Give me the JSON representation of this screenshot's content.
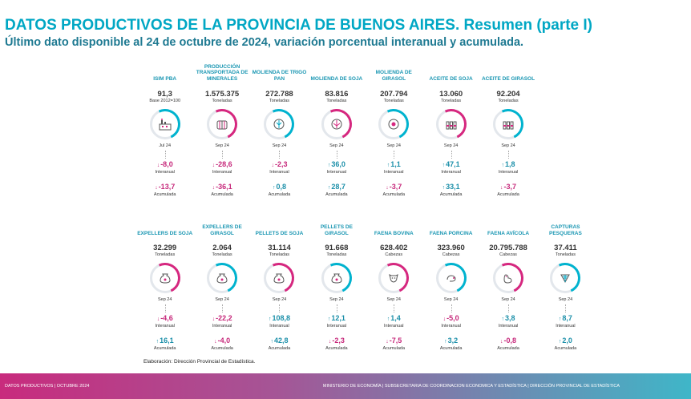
{
  "title": "DATOS PRODUCTIVOS DE LA PROVINCIA DE BUENOS AIRES. Resumen (parte I)",
  "subtitle": "Último dato disponible al 24 de octubre de 2024, variación porcentual interanual y acumulada.",
  "row1": [
    {
      "label": "ISIM PBA",
      "value": "91,3",
      "unit": "Base 2012=100",
      "icon": "factory-icon",
      "period": "Jul 24",
      "inter": "-8,0",
      "inter_dir": "down",
      "acum": "-13,7",
      "acum_dir": "down"
    },
    {
      "label": "PRODUCCIÓN TRANSPORTADA DE MINERALES",
      "value": "1.575.375",
      "unit": "Toneladas",
      "icon": "silo-icon",
      "period": "Sep 24",
      "inter": "-28,6",
      "inter_dir": "down",
      "acum": "-36,1",
      "acum_dir": "down"
    },
    {
      "label": "MOLIENDA DE TRIGO PAN",
      "value": "272.788",
      "unit": "Toneladas",
      "icon": "wheat-icon",
      "period": "Sep 24",
      "inter": "-2,3",
      "inter_dir": "down",
      "acum": "0,8",
      "acum_dir": "up"
    },
    {
      "label": "MOLIENDA DE SOJA",
      "value": "83.816",
      "unit": "Toneladas",
      "icon": "soy-icon",
      "period": "Sep 24",
      "inter": "36,0",
      "inter_dir": "up",
      "acum": "28,7",
      "acum_dir": "up"
    },
    {
      "label": "MOLIENDA DE GIRASOL",
      "value": "207.794",
      "unit": "Toneladas",
      "icon": "sunflower-icon",
      "period": "Sep 24",
      "inter": "1,1",
      "inter_dir": "up",
      "acum": "-3,7",
      "acum_dir": "down"
    },
    {
      "label": "ACEITE DE SOJA",
      "value": "13.060",
      "unit": "Toneladas",
      "icon": "oil-bottles-icon",
      "period": "Sep 24",
      "inter": "47,1",
      "inter_dir": "up",
      "acum": "33,1",
      "acum_dir": "up"
    },
    {
      "label": "ACEITE DE GIRASOL",
      "value": "92.204",
      "unit": "Toneladas",
      "icon": "oil-bottles-icon",
      "period": "Sep 24",
      "inter": "1,8",
      "inter_dir": "up",
      "acum": "-3,7",
      "acum_dir": "down"
    }
  ],
  "row2": [
    {
      "label": "EXPELLERS DE SOJA",
      "value": "32.299",
      "unit": "Toneladas",
      "icon": "sack-icon",
      "period": "Sep 24",
      "inter": "-4,6",
      "inter_dir": "down",
      "acum": "16,1",
      "acum_dir": "up"
    },
    {
      "label": "EXPELLERS DE GIRASOL",
      "value": "2.064",
      "unit": "Toneladas",
      "icon": "sack-icon",
      "period": "Sep 24",
      "inter": "-22,2",
      "inter_dir": "down",
      "acum": "-4,0",
      "acum_dir": "down"
    },
    {
      "label": "PELLETS DE SOJA",
      "value": "31.114",
      "unit": "Toneladas",
      "icon": "sack-icon",
      "period": "Sep 24",
      "inter": "108,8",
      "inter_dir": "up",
      "acum": "42,8",
      "acum_dir": "up"
    },
    {
      "label": "PELLETS DE GIRASOL",
      "value": "91.668",
      "unit": "Toneladas",
      "icon": "sack-icon",
      "period": "Sep 24",
      "inter": "12,1",
      "inter_dir": "up",
      "acum": "-2,3",
      "acum_dir": "down"
    },
    {
      "label": "FAENA BOVINA",
      "value": "628.402",
      "unit": "Cabezas",
      "icon": "cow-icon",
      "period": "Sep 24",
      "inter": "1,4",
      "inter_dir": "up",
      "acum": "-7,5",
      "acum_dir": "down"
    },
    {
      "label": "FAENA PORCINA",
      "value": "323.960",
      "unit": "Cabezas",
      "icon": "pig-icon",
      "period": "Sep 24",
      "inter": "-5,0",
      "inter_dir": "down",
      "acum": "3,2",
      "acum_dir": "up"
    },
    {
      "label": "FAENA AVÍCOLA",
      "value": "20.795.788",
      "unit": "Cabezas",
      "icon": "chicken-icon",
      "period": "Sep 24",
      "inter": "3,8",
      "inter_dir": "up",
      "acum": "-0,8",
      "acum_dir": "down"
    },
    {
      "label": "CAPTURAS PESQUERAS",
      "value": "37.411",
      "unit": "Toneladas",
      "icon": "fishing-net-icon",
      "period": "Sep 24",
      "inter": "8,7",
      "inter_dir": "up",
      "acum": "2,0",
      "acum_dir": "up"
    }
  ],
  "labels": {
    "interanual": "Interanual",
    "acumulada": "Acumulada"
  },
  "footnote": "Elaboración: Dirección Provincial de Estadística.",
  "footer": {
    "left": "DATOS PRODUCTIVOS | OCTUBRE 2024",
    "right": "MINISTERIO DE ECONOMÍA | SUBSECRETARIA DE COORDINACION ECONOMICA Y ESTADÍSTICA | DIRECCIÓN PROVINCIAL DE ESTADÍSTICA"
  },
  "colors": {
    "up": "#1b8fa9",
    "down": "#c6277a",
    "title": "#00a7c4"
  }
}
